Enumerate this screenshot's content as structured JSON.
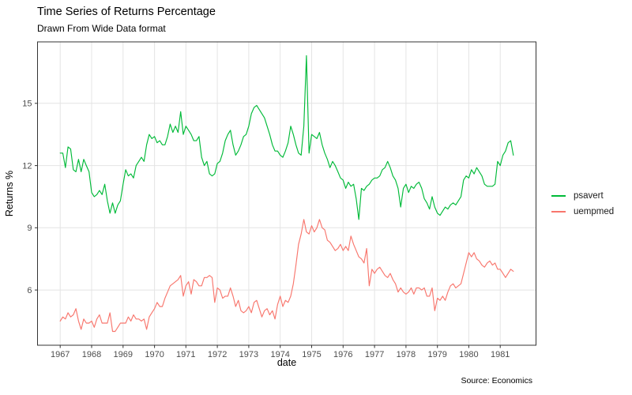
{
  "title": "Time Series of Returns Percentage",
  "subtitle": "Drawn From Wide Data format",
  "caption": "Source: Economics",
  "colors": {
    "psavert": "#00BA38",
    "uempmed": "#F8766D",
    "grid": "#E4E4E4",
    "panel_border": "#333333",
    "tick_text": "#4d4d4d",
    "background": "#ffffff"
  },
  "chart_data": {
    "type": "line",
    "title": "Time Series of Returns Percentage",
    "subtitle": "Drawn From Wide Data format",
    "caption": "Source: Economics",
    "xlabel": "date",
    "ylabel": "Returns %",
    "x_start": "1967-07",
    "x_end": "1981-12",
    "x_frequency": "monthly",
    "x_tick_labels": [
      "1967",
      "1968",
      "1969",
      "1970",
      "1971",
      "1972",
      "1973",
      "1974",
      "1975",
      "1976",
      "1977",
      "1978",
      "1979",
      "1980",
      "1981"
    ],
    "y_ticks": [
      6,
      9,
      12,
      15
    ],
    "ylim": [
      3.3,
      18.0
    ],
    "grid": true,
    "legend_position": "right",
    "series": [
      {
        "name": "psavert",
        "color": "#00BA38",
        "values": [
          12.6,
          12.6,
          11.9,
          12.9,
          12.8,
          11.8,
          11.7,
          12.3,
          11.7,
          12.3,
          12.0,
          11.7,
          10.7,
          10.5,
          10.6,
          10.8,
          10.6,
          11.1,
          10.3,
          9.7,
          10.2,
          9.7,
          10.1,
          10.3,
          11.1,
          11.8,
          11.5,
          11.6,
          11.4,
          12.0,
          12.2,
          12.4,
          12.2,
          13.0,
          13.5,
          13.3,
          13.4,
          13.1,
          13.2,
          13.0,
          13.0,
          13.4,
          14.0,
          13.6,
          13.9,
          13.6,
          14.6,
          13.5,
          13.9,
          13.7,
          13.5,
          13.2,
          13.2,
          13.4,
          12.4,
          12.0,
          12.2,
          11.6,
          11.5,
          11.6,
          12.1,
          12.2,
          12.6,
          13.2,
          13.5,
          13.7,
          13.0,
          12.5,
          12.7,
          13.0,
          13.4,
          13.5,
          13.9,
          14.5,
          14.8,
          14.9,
          14.7,
          14.5,
          14.3,
          13.9,
          13.5,
          13.0,
          12.7,
          12.7,
          12.5,
          12.4,
          12.7,
          13.1,
          13.9,
          13.5,
          13.0,
          12.6,
          12.5,
          13.9,
          17.3,
          12.6,
          13.5,
          13.4,
          13.3,
          13.6,
          13.0,
          12.6,
          12.3,
          11.9,
          12.2,
          12.0,
          11.7,
          11.4,
          11.3,
          10.9,
          11.2,
          11.0,
          11.1,
          10.4,
          9.4,
          10.9,
          10.8,
          11.0,
          11.1,
          11.3,
          11.4,
          11.4,
          11.5,
          11.8,
          11.9,
          12.2,
          11.9,
          11.5,
          11.3,
          10.9,
          10.0,
          10.9,
          11.1,
          10.7,
          11.0,
          10.9,
          11.1,
          11.2,
          10.9,
          10.4,
          10.2,
          9.9,
          10.5,
          10.0,
          9.7,
          9.6,
          9.8,
          10.0,
          9.9,
          10.1,
          10.2,
          10.1,
          10.3,
          10.5,
          11.3,
          11.5,
          11.4,
          11.8,
          11.6,
          11.9,
          11.7,
          11.5,
          11.1,
          11.0,
          11.0,
          11.0,
          11.1,
          12.2,
          12.0,
          12.5,
          12.7,
          13.1,
          13.2,
          12.5
        ]
      },
      {
        "name": "uempmed",
        "color": "#F8766D",
        "values": [
          4.5,
          4.7,
          4.6,
          4.9,
          4.7,
          4.8,
          5.1,
          4.5,
          4.1,
          4.6,
          4.4,
          4.4,
          4.5,
          4.2,
          4.6,
          4.8,
          4.4,
          4.4,
          4.4,
          4.9,
          4.0,
          4.0,
          4.2,
          4.4,
          4.4,
          4.4,
          4.7,
          4.5,
          4.8,
          4.6,
          4.6,
          4.5,
          4.6,
          4.1,
          4.7,
          4.9,
          5.1,
          5.4,
          5.2,
          5.2,
          5.6,
          5.9,
          6.2,
          6.3,
          6.4,
          6.5,
          6.7,
          5.7,
          6.2,
          6.4,
          5.8,
          6.5,
          6.4,
          6.2,
          6.2,
          6.6,
          6.6,
          6.7,
          6.6,
          5.4,
          6.1,
          6.0,
          5.6,
          5.7,
          5.7,
          6.1,
          5.7,
          5.2,
          5.5,
          5.0,
          4.9,
          5.0,
          5.2,
          4.9,
          5.4,
          5.5,
          5.1,
          4.7,
          5.0,
          5.1,
          4.8,
          5.0,
          4.6,
          5.3,
          5.7,
          5.2,
          5.5,
          5.4,
          5.7,
          6.3,
          7.2,
          8.2,
          8.7,
          9.4,
          8.8,
          8.7,
          9.1,
          8.8,
          9.0,
          9.4,
          9.0,
          8.9,
          8.4,
          8.3,
          8.1,
          7.9,
          8.0,
          8.2,
          7.9,
          8.1,
          7.9,
          8.6,
          8.2,
          7.9,
          7.6,
          7.5,
          7.3,
          8.0,
          6.2,
          7.0,
          6.8,
          7.0,
          7.1,
          6.9,
          6.7,
          6.6,
          6.8,
          6.5,
          6.3,
          5.9,
          6.1,
          5.9,
          5.8,
          5.9,
          6.1,
          5.8,
          6.1,
          6.1,
          6.0,
          6.1,
          5.7,
          5.7,
          6.1,
          5.0,
          5.6,
          5.5,
          5.7,
          5.5,
          5.9,
          6.2,
          6.3,
          6.1,
          6.2,
          6.3,
          6.8,
          7.3,
          7.8,
          7.6,
          7.8,
          7.5,
          7.4,
          7.2,
          7.1,
          7.3,
          7.4,
          7.2,
          7.3,
          7.0,
          7.0,
          6.8,
          6.6,
          6.8,
          7.0,
          6.9
        ]
      }
    ]
  }
}
